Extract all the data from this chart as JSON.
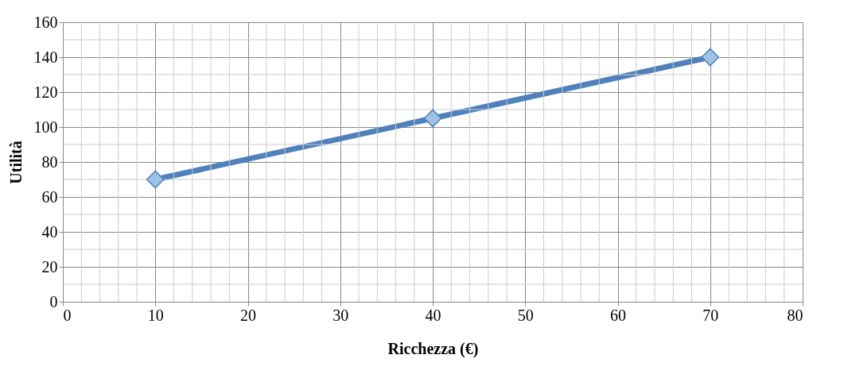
{
  "chart_data": {
    "type": "line",
    "xlabel": "Ricchezza (€)",
    "ylabel": "Utilità",
    "x": [
      10,
      40,
      70
    ],
    "series": [
      {
        "color": "#4f81bd",
        "values": [
          70,
          105,
          140
        ]
      }
    ],
    "xlim": [
      0,
      80
    ],
    "xticks": [
      0,
      10,
      20,
      30,
      40,
      50,
      60,
      70,
      80
    ],
    "ylim": [
      0,
      160
    ],
    "yticks": [
      0,
      20,
      40,
      60,
      80,
      100,
      120,
      140,
      160
    ],
    "grid": true,
    "marker": "diamond",
    "line_style": "solid"
  }
}
